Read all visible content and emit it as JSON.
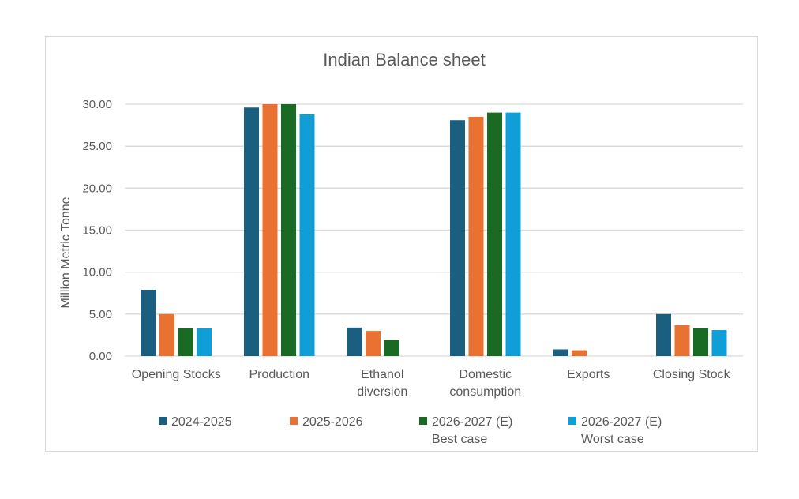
{
  "chart_data": {
    "type": "bar",
    "title": "Indian Balance sheet",
    "xlabel": "",
    "ylabel": "Million Metric Tonne",
    "ylim": [
      0,
      30
    ],
    "yticks": [
      "0.00",
      "5.00",
      "10.00",
      "15.00",
      "20.00",
      "25.00",
      "30.00"
    ],
    "grid": true,
    "legend_position": "bottom",
    "categories": [
      [
        "Opening Stocks"
      ],
      [
        "Production"
      ],
      [
        "Ethanol",
        "diversion"
      ],
      [
        "Domestic",
        "consumption"
      ],
      [
        "Exports"
      ],
      [
        "Closing Stock"
      ]
    ],
    "series": [
      {
        "name": [
          "2024-2025"
        ],
        "color": "#1a5e80",
        "values": [
          7.9,
          29.6,
          3.4,
          28.1,
          0.8,
          5.0
        ]
      },
      {
        "name": [
          "2025-2026"
        ],
        "color": "#e97132",
        "values": [
          5.0,
          31.0,
          3.0,
          28.5,
          0.7,
          3.7
        ]
      },
      {
        "name": [
          "2026-2027 (E)",
          "Best case"
        ],
        "color": "#196b24",
        "values": [
          3.3,
          31.0,
          1.9,
          29.0,
          0,
          3.3
        ]
      },
      {
        "name": [
          "2026-2027 (E)",
          "Worst case"
        ],
        "color": "#0f9ed5",
        "values": [
          3.3,
          28.8,
          0,
          29.0,
          0,
          3.1
        ]
      }
    ]
  }
}
